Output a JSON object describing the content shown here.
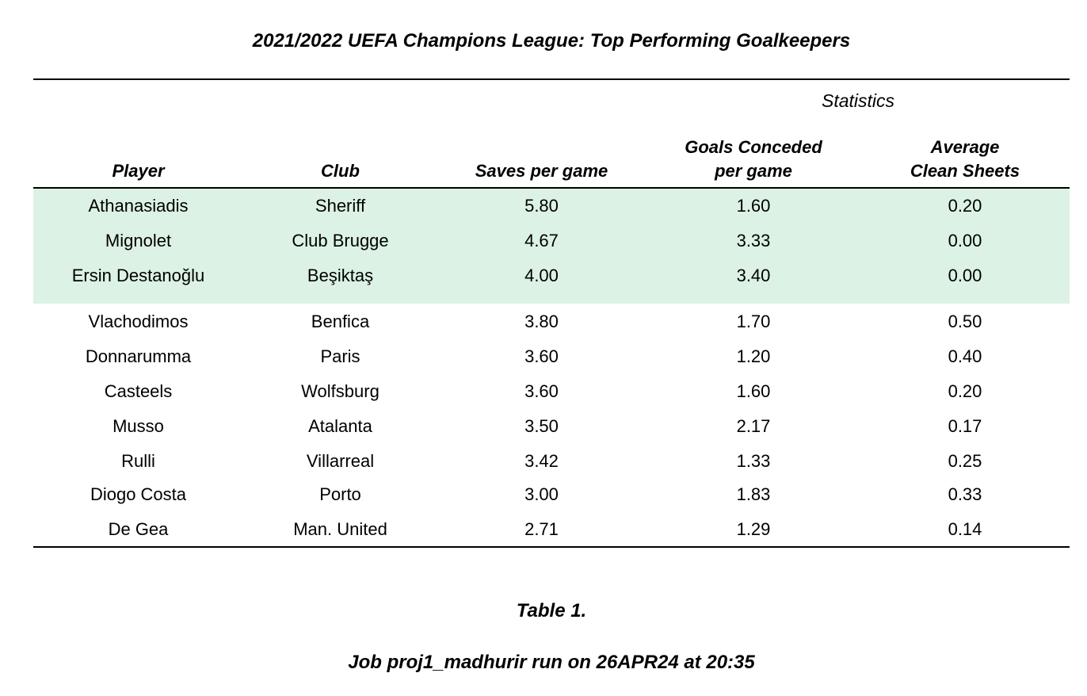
{
  "chart_data": {
    "type": "table",
    "title": "2021/2022 UEFA Champions League: Top Performing Goalkeepers",
    "spanner_label": "Statistics",
    "columns": [
      [
        "Player"
      ],
      [
        "Club"
      ],
      [
        "Saves per game"
      ],
      [
        "Goals Conceded",
        "per game"
      ],
      [
        "Average",
        "Clean Sheets"
      ]
    ],
    "rows": [
      [
        "Athanasiadis",
        "Sheriff",
        "5.80",
        "1.60",
        "0.20"
      ],
      [
        "Mignolet",
        "Club Brugge",
        "4.67",
        "3.33",
        "0.00"
      ],
      [
        "Ersin Destanoğlu",
        "Beşiktaş",
        "4.00",
        "3.40",
        "0.00"
      ],
      [
        "Vlachodimos",
        "Benfica",
        "3.80",
        "1.70",
        "0.50"
      ],
      [
        "Donnarumma",
        "Paris",
        "3.60",
        "1.20",
        "0.40"
      ],
      [
        "Casteels",
        "Wolfsburg",
        "3.60",
        "1.60",
        "0.20"
      ],
      [
        "Musso",
        "Atalanta",
        "3.50",
        "2.17",
        "0.17"
      ],
      [
        "Rulli",
        "Villarreal",
        "3.42",
        "1.33",
        "0.25"
      ],
      [
        "Diogo Costa",
        "Porto",
        "3.00",
        "1.83",
        "0.33"
      ],
      [
        "De Gea",
        "Man. United",
        "2.71",
        "1.29",
        "0.14"
      ]
    ],
    "highlighted_rows": 3,
    "highlight_color": "#dcf2e4"
  },
  "footer": {
    "caption": "Table 1.",
    "job_note": "Job proj1_madhurir run on 26APR24 at 20:35"
  }
}
